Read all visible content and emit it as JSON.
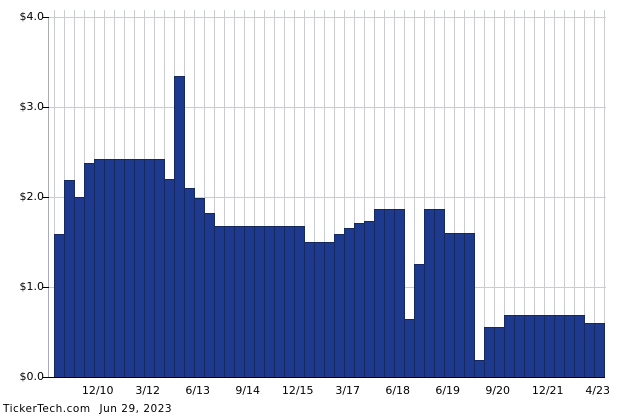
{
  "footer": {
    "brand": "TickerTech.com",
    "date": "Jun 29, 2023"
  },
  "colors": {
    "bar_fill": "#1e3a8e",
    "bar_border": "#15295f",
    "grid": "#c9ccd1",
    "axis": "#000000",
    "background": "#ffffff"
  },
  "chart_data": {
    "type": "bar",
    "title": "",
    "xlabel": "",
    "ylabel": "",
    "ylim": [
      0,
      4
    ],
    "grid": true,
    "legend": false,
    "y_ticks": [
      {
        "label": "$0.0",
        "value": 0
      },
      {
        "label": "$1.0",
        "value": 1
      },
      {
        "label": "$2.0",
        "value": 2
      },
      {
        "label": "$3.0",
        "value": 3
      },
      {
        "label": "$4.0",
        "value": 4
      }
    ],
    "x_ticks": [
      {
        "label": "12/10",
        "bar": 5
      },
      {
        "label": "3/12",
        "bar": 10
      },
      {
        "label": "6/13",
        "bar": 15
      },
      {
        "label": "9/14",
        "bar": 20
      },
      {
        "label": "12/15",
        "bar": 25
      },
      {
        "label": "3/17",
        "bar": 30
      },
      {
        "label": "6/18",
        "bar": 35
      },
      {
        "label": "6/19",
        "bar": 40
      },
      {
        "label": "9/20",
        "bar": 45
      },
      {
        "label": "12/21",
        "bar": 50
      },
      {
        "label": "4/23",
        "bar": 55
      }
    ],
    "values": [
      1.59,
      2.19,
      2.0,
      2.38,
      2.42,
      2.42,
      2.42,
      2.42,
      2.42,
      2.42,
      2.42,
      2.2,
      3.34,
      2.1,
      1.99,
      1.82,
      1.68,
      1.68,
      1.68,
      1.68,
      1.68,
      1.68,
      1.68,
      1.68,
      1.68,
      1.5,
      1.5,
      1.5,
      1.59,
      1.66,
      1.71,
      1.73,
      1.87,
      1.87,
      1.87,
      0.64,
      1.26,
      1.87,
      1.87,
      1.6,
      1.6,
      1.6,
      0.19,
      0.56,
      0.56,
      0.69,
      0.69,
      0.69,
      0.69,
      0.69,
      0.69,
      0.69,
      0.69,
      0.6,
      0.6
    ]
  }
}
